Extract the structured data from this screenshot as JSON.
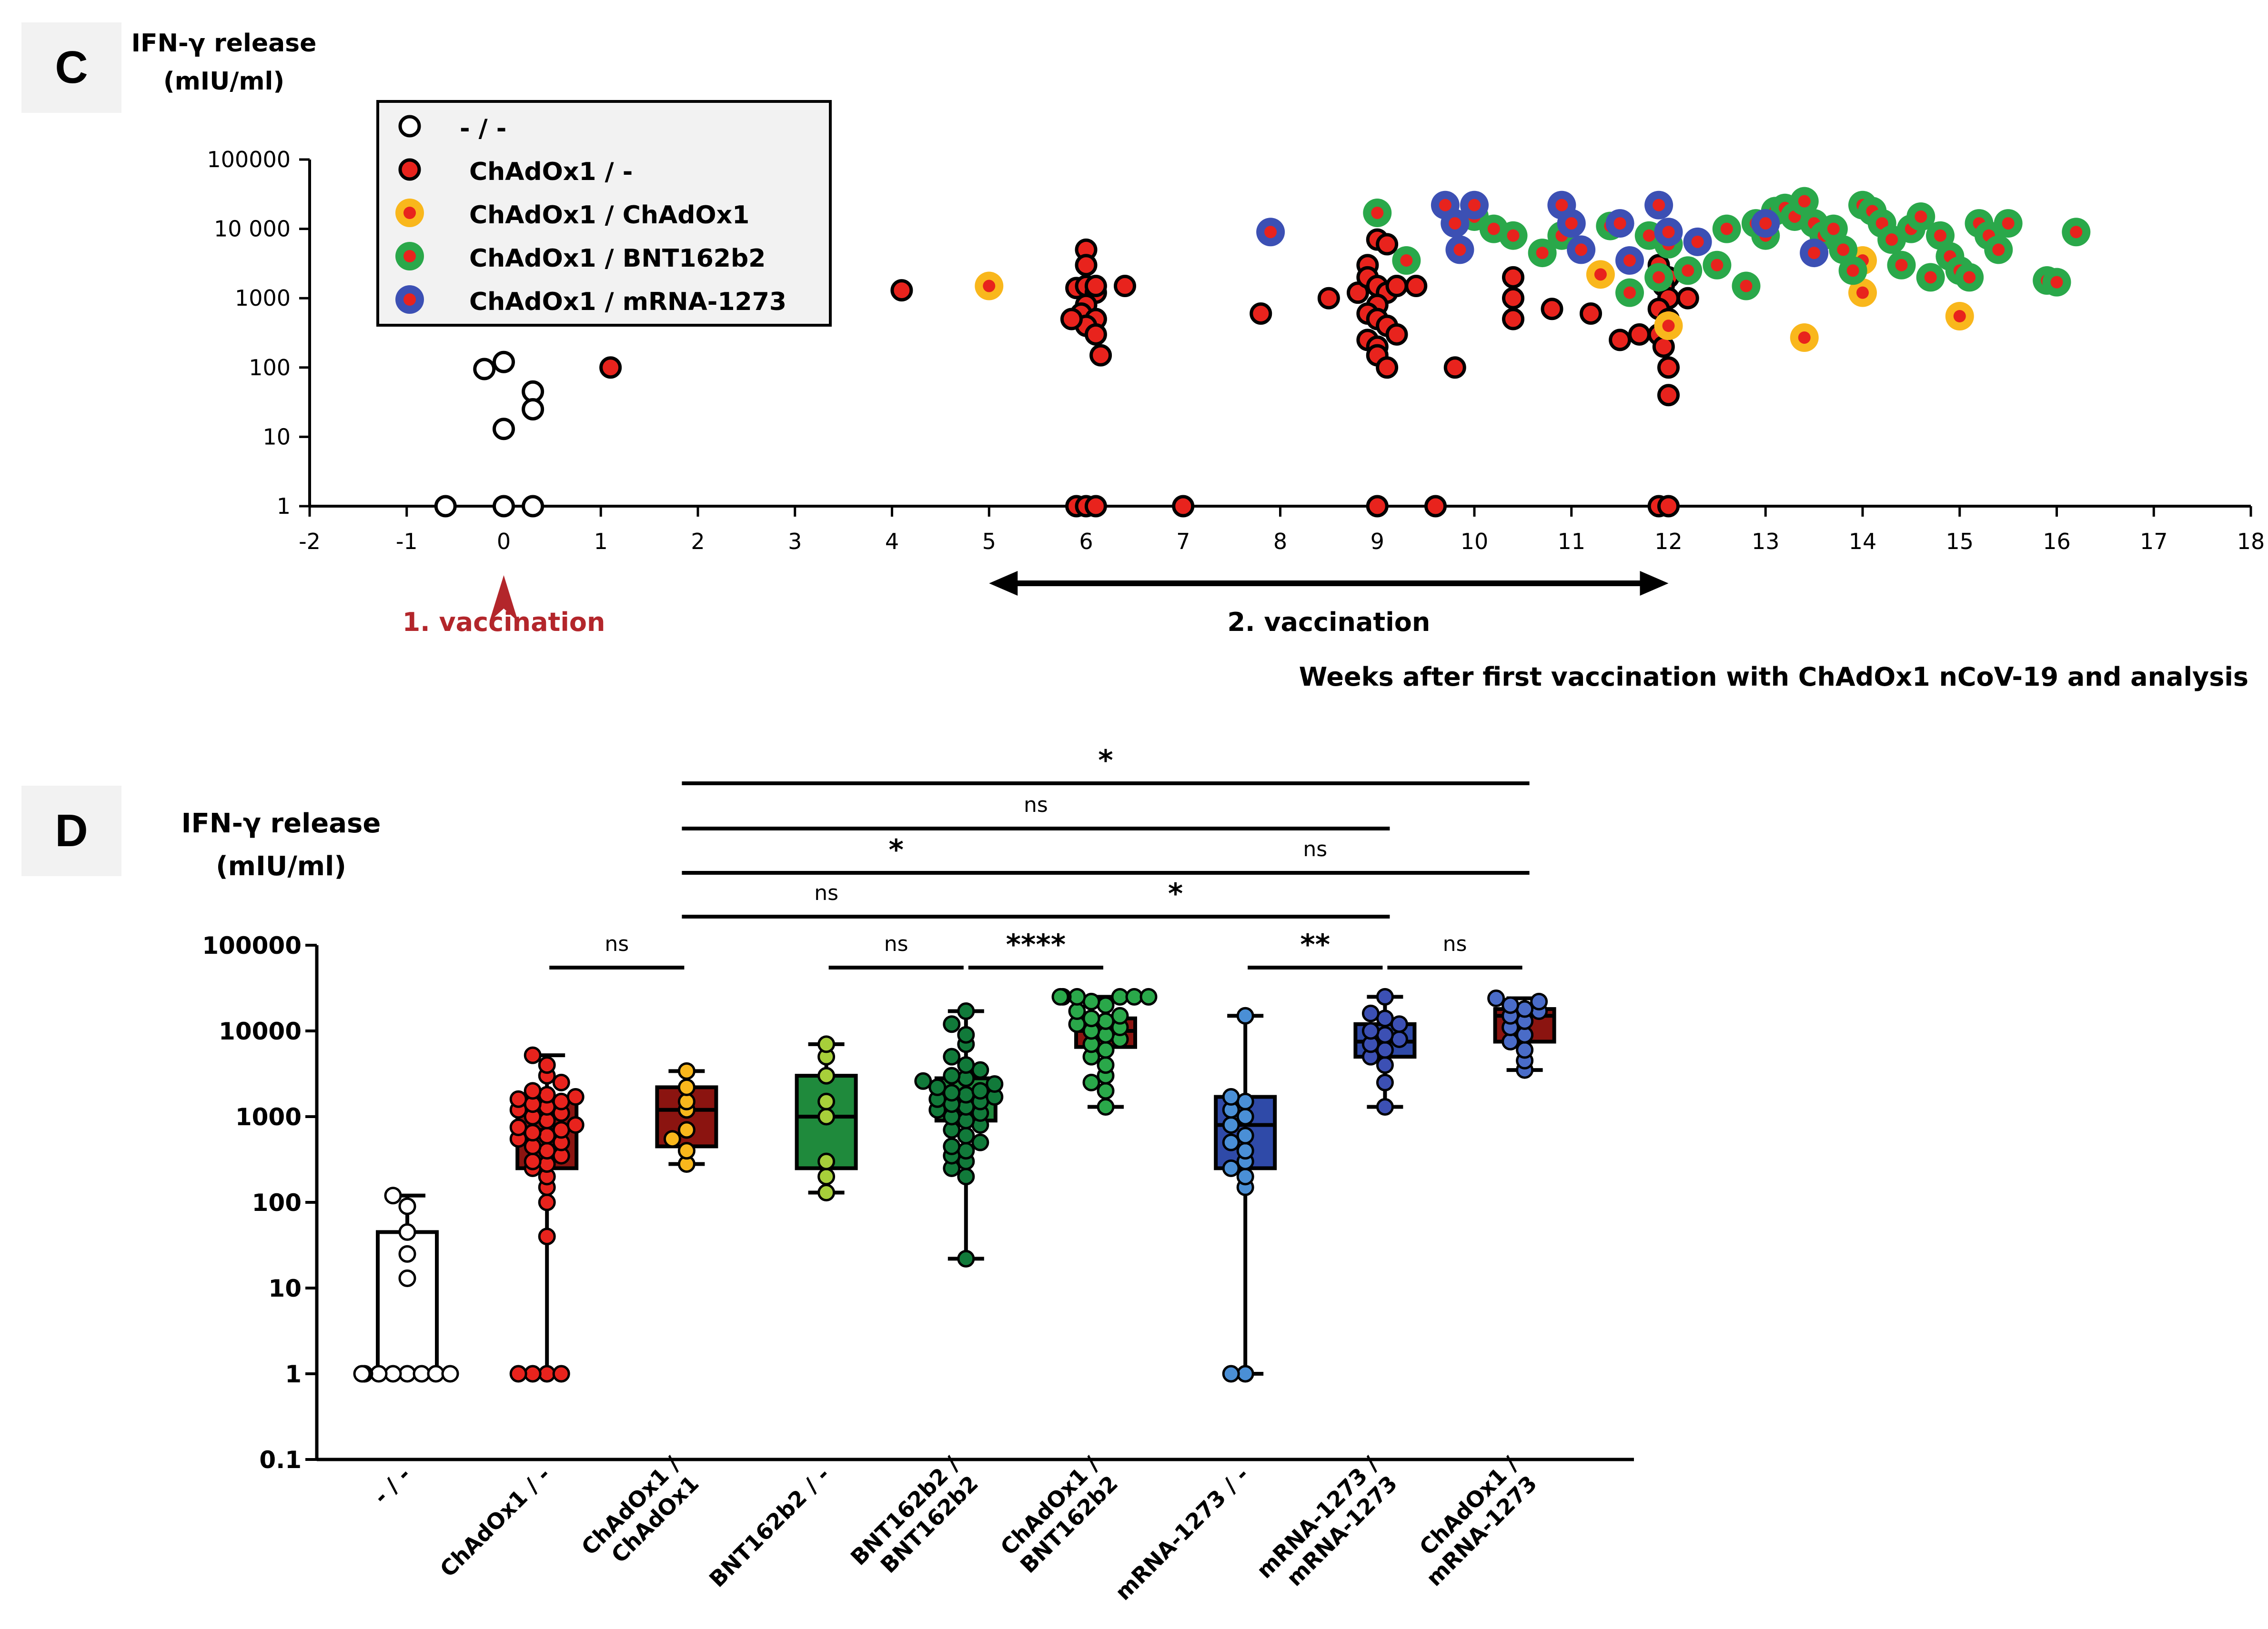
{
  "panels": {
    "c_label": "C",
    "d_label": "D"
  },
  "colors": {
    "white": "#ffffff",
    "red": "#e8231d",
    "orange": "#f9b71c",
    "green": "#2aa84a",
    "blue": "#3c50b4",
    "darkred": "#8b1410",
    "boxgreen": "#1f8a3c",
    "boxblue": "#2f4aa8",
    "lightgreen": "#a7cf3a",
    "darkgreen": "#117a3a",
    "lightblue": "#4a8fd6",
    "arrowred": "#b3262b"
  },
  "chart_data": [
    {
      "type": "scatter",
      "id": "C",
      "ylabel": "IFN-γ release",
      "ylabel_unit": "(mIU/ml)",
      "xlabel": "Weeks after first vaccination with ChAdOx1 nCoV-19 and analysis",
      "y_scale": "log",
      "ylim": [
        1,
        100000
      ],
      "xlim": [
        -2,
        18
      ],
      "x_ticks": [
        "-2",
        "-1",
        "0",
        "1",
        "2",
        "3",
        "4",
        "5",
        "6",
        "7",
        "8",
        "9",
        "10",
        "11",
        "12",
        "13",
        "14",
        "15",
        "16",
        "17",
        "18"
      ],
      "y_ticks": [
        "1",
        "10",
        "100",
        "1000",
        "10 000",
        "100000"
      ],
      "annotations": {
        "first_vaccination": "1. vaccination",
        "second_vaccination": "2. vaccination",
        "second_vaccination_range": [
          5,
          12
        ]
      },
      "legend": [
        {
          "label": "- / -",
          "color": "#ffffff",
          "ring": "#ffffff"
        },
        {
          "label": "ChAdOx1 / -",
          "color": "#e8231d",
          "ring": "#e8231d"
        },
        {
          "label": "ChAdOx1 / ChAdOx1",
          "color": "#e8231d",
          "ring": "#f9b71c"
        },
        {
          "label": "ChAdOx1 / BNT162b2",
          "color": "#e8231d",
          "ring": "#2aa84a"
        },
        {
          "label": "ChAdOx1 / mRNA-1273",
          "color": "#e8231d",
          "ring": "#3c50b4"
        }
      ],
      "series": [
        {
          "name": "- / -",
          "points": [
            [
              -0.6,
              1
            ],
            [
              0,
              1
            ],
            [
              0.3,
              1
            ],
            [
              -0.2,
              95
            ],
            [
              0,
              120
            ],
            [
              0.3,
              45
            ],
            [
              0.3,
              25
            ],
            [
              0,
              13
            ]
          ]
        },
        {
          "name": "ChAdOx1 / -",
          "points": [
            [
              1.1,
              100
            ],
            [
              4.1,
              1300
            ],
            [
              5.9,
              1
            ],
            [
              6,
              1
            ],
            [
              6.1,
              1
            ],
            [
              5.9,
              1400
            ],
            [
              6,
              1500
            ],
            [
              6.1,
              1200
            ],
            [
              6,
              5000
            ],
            [
              6,
              3000
            ],
            [
              6,
              800
            ],
            [
              5.95,
              600
            ],
            [
              6.1,
              500
            ],
            [
              6,
              400
            ],
            [
              6.1,
              300
            ],
            [
              6.15,
              150
            ],
            [
              6.4,
              1500
            ],
            [
              6.1,
              1500
            ],
            [
              5.85,
              500
            ],
            [
              7,
              1
            ],
            [
              7.8,
              600
            ],
            [
              8.5,
              1000
            ],
            [
              8.8,
              1200
            ],
            [
              8.9,
              3000
            ],
            [
              8.9,
              2000
            ],
            [
              9,
              1500
            ],
            [
              9.1,
              1200
            ],
            [
              9,
              800
            ],
            [
              8.9,
              600
            ],
            [
              9,
              500
            ],
            [
              9.1,
              400
            ],
            [
              9.2,
              300
            ],
            [
              8.9,
              250
            ],
            [
              9,
              200
            ],
            [
              9,
              150
            ],
            [
              9.1,
              100
            ],
            [
              9.2,
              1500
            ],
            [
              9,
              7000
            ],
            [
              9.1,
              6000
            ],
            [
              9.4,
              1500
            ],
            [
              9.6,
              1
            ],
            [
              9.8,
              100
            ],
            [
              10.4,
              2000
            ],
            [
              10.4,
              1000
            ],
            [
              10.4,
              500
            ],
            [
              10.8,
              700
            ],
            [
              11.2,
              600
            ],
            [
              11.5,
              250
            ],
            [
              11.7,
              300
            ],
            [
              11.9,
              1
            ],
            [
              12,
              1
            ],
            [
              11.9,
              3000
            ],
            [
              12,
              2000
            ],
            [
              11.95,
              1500
            ],
            [
              12,
              1000
            ],
            [
              11.9,
              700
            ],
            [
              12,
              500
            ],
            [
              11.9,
              300
            ],
            [
              11.95,
              200
            ],
            [
              12,
              100
            ],
            [
              12.2,
              1000
            ],
            [
              12,
              40
            ],
            [
              9,
              1
            ]
          ]
        },
        {
          "name": "ChAdOx1 / ChAdOx1",
          "points": [
            [
              5,
              1500
            ],
            [
              11.3,
              2200
            ],
            [
              12,
              400
            ],
            [
              13.4,
              270
            ],
            [
              14,
              3500
            ],
            [
              14,
              1200
            ],
            [
              15,
              550
            ]
          ]
        },
        {
          "name": "ChAdOx1 / BNT162b2",
          "points": [
            [
              9,
              17000
            ],
            [
              9.3,
              3500
            ],
            [
              10,
              15000
            ],
            [
              10.2,
              10000
            ],
            [
              10.4,
              8000
            ],
            [
              10.9,
              8000
            ],
            [
              10.7,
              4500
            ],
            [
              11.4,
              11000
            ],
            [
              11.6,
              1200
            ],
            [
              11.8,
              8000
            ],
            [
              11.9,
              2000
            ],
            [
              12,
              6000
            ],
            [
              12.2,
              2500
            ],
            [
              12.5,
              3000
            ],
            [
              12.6,
              10000
            ],
            [
              12.8,
              1500
            ],
            [
              12.9,
              12000
            ],
            [
              13,
              8000
            ],
            [
              13.1,
              18000
            ],
            [
              13.2,
              20000
            ],
            [
              13.3,
              15000
            ],
            [
              13.4,
              25000
            ],
            [
              13.5,
              12000
            ],
            [
              13.6,
              8000
            ],
            [
              13.7,
              10000
            ],
            [
              13.8,
              5000
            ],
            [
              13.9,
              2500
            ],
            [
              14,
              22000
            ],
            [
              14.1,
              18000
            ],
            [
              14.2,
              12000
            ],
            [
              14.3,
              7000
            ],
            [
              14.4,
              3000
            ],
            [
              14.5,
              10000
            ],
            [
              14.6,
              15000
            ],
            [
              14.7,
              2000
            ],
            [
              14.8,
              8000
            ],
            [
              14.9,
              4000
            ],
            [
              15,
              2500
            ],
            [
              15.1,
              2000
            ],
            [
              15.2,
              12000
            ],
            [
              15.3,
              8000
            ],
            [
              15.4,
              5000
            ],
            [
              15.5,
              12000
            ],
            [
              15.9,
              1800
            ],
            [
              16,
              1700
            ],
            [
              16.2,
              9000
            ]
          ]
        },
        {
          "name": "ChAdOx1 / mRNA-1273",
          "points": [
            [
              7.9,
              9000
            ],
            [
              9.7,
              22000
            ],
            [
              9.8,
              12000
            ],
            [
              9.85,
              5000
            ],
            [
              10,
              22000
            ],
            [
              10.9,
              22000
            ],
            [
              11,
              12000
            ],
            [
              11.1,
              5000
            ],
            [
              11.5,
              12000
            ],
            [
              11.6,
              3500
            ],
            [
              11.9,
              22000
            ],
            [
              12,
              9000
            ],
            [
              12.3,
              6500
            ],
            [
              13,
              12000
            ],
            [
              13.5,
              4500
            ]
          ]
        }
      ]
    },
    {
      "type": "box",
      "id": "D",
      "ylabel": "IFN-γ release",
      "ylabel_unit": "(mIU/ml)",
      "y_scale": "log",
      "ylim": [
        0.1,
        100000
      ],
      "y_ticks": [
        "0.1",
        "1",
        "10",
        "100",
        "1000",
        "10000",
        "100000"
      ],
      "categories": [
        "- / -",
        "ChAdOx1 / -",
        "ChAdOx1 / ChAdOx1",
        "BNT162b2 / -",
        "BNT162b2 / BNT162b2",
        "ChAdOx1 / BNT162b2",
        "mRNA-1273 / -",
        "mRNA-1273 / mRNA-1273",
        "ChAdOx1 / mRNA-1273"
      ],
      "category_lines": [
        [
          "- / -"
        ],
        [
          "ChAdOx1 / -"
        ],
        [
          "ChAdOx1 /",
          "ChAdOx1"
        ],
        [
          "BNT162b2 / -"
        ],
        [
          "BNT162b2 /",
          "BNT162b2"
        ],
        [
          "ChAdOx1 /",
          "BNT162b2"
        ],
        [
          "mRNA-1273 / -"
        ],
        [
          "mRNA-1273 /",
          "mRNA-1273"
        ],
        [
          "ChAdOx1 /",
          "mRNA-1273"
        ]
      ],
      "boxes": [
        {
          "min": 1,
          "q1": 1,
          "median": 1,
          "q3": 45,
          "max": 120,
          "fill": "#ffffff",
          "dot": "#ffffff",
          "points": [
            1,
            1,
            1,
            1,
            1,
            1,
            1,
            1,
            13,
            25,
            45,
            90,
            120
          ]
        },
        {
          "min": 1,
          "q1": 250,
          "median": 700,
          "q3": 1600,
          "max": 5200,
          "fill": "#8b1410",
          "dot": "#e8231d",
          "points": [
            1,
            1,
            1,
            1,
            40,
            100,
            150,
            200,
            250,
            280,
            300,
            350,
            400,
            450,
            500,
            550,
            600,
            650,
            700,
            750,
            800,
            900,
            1000,
            1100,
            1200,
            1300,
            1400,
            1500,
            1600,
            1700,
            1800,
            2000,
            2500,
            3000,
            4000,
            5200
          ]
        },
        {
          "min": 280,
          "q1": 450,
          "median": 1200,
          "q3": 2200,
          "max": 3400,
          "fill": "#8b1410",
          "dot": "#f9b71c",
          "points": [
            280,
            400,
            550,
            1200,
            1500,
            2200,
            3400,
            700
          ]
        },
        {
          "min": 130,
          "q1": 250,
          "median": 1000,
          "q3": 3000,
          "max": 7000,
          "fill": "#1f8a3c",
          "dot": "#a7cf3a",
          "points": [
            130,
            200,
            300,
            1000,
            1500,
            3000,
            5000,
            7000
          ]
        },
        {
          "min": 22,
          "q1": 900,
          "median": 1800,
          "q3": 2800,
          "max": 17000,
          "fill": "#1f8a3c",
          "dot": "#117a3a",
          "points": [
            22,
            200,
            250,
            300,
            350,
            400,
            450,
            500,
            600,
            700,
            800,
            900,
            1000,
            1100,
            1200,
            1300,
            1400,
            1500,
            1600,
            1700,
            1800,
            1900,
            2000,
            2200,
            2400,
            2600,
            2800,
            3000,
            3500,
            4000,
            5000,
            7000,
            9000,
            12000,
            17000
          ]
        },
        {
          "min": 1300,
          "q1": 6500,
          "median": 10000,
          "q3": 14000,
          "max": 25000,
          "fill": "#8b1410",
          "dot": "#2aa84a",
          "points": [
            1300,
            2000,
            2500,
            3000,
            4000,
            5000,
            6000,
            7000,
            8000,
            9000,
            10000,
            11000,
            12000,
            13000,
            14000,
            15000,
            17000,
            20000,
            22000,
            25000,
            25000,
            25000,
            25000,
            25000,
            25000
          ]
        },
        {
          "min": 1,
          "q1": 250,
          "median": 800,
          "q3": 1700,
          "max": 15000,
          "fill": "#2f4aa8",
          "dot": "#4a8fd6",
          "points": [
            1,
            1,
            150,
            200,
            250,
            300,
            400,
            500,
            600,
            800,
            1000,
            1200,
            1500,
            1700,
            15000
          ]
        },
        {
          "min": 1300,
          "q1": 5000,
          "median": 7500,
          "q3": 12000,
          "max": 25000,
          "fill": "#2f4aa8",
          "dot": "#3c50b4",
          "points": [
            1300,
            2500,
            4000,
            5000,
            6000,
            7000,
            8000,
            9000,
            10000,
            12000,
            14000,
            16000,
            25000
          ]
        },
        {
          "min": 3500,
          "q1": 7500,
          "median": 15000,
          "q3": 18000,
          "max": 24000,
          "fill": "#8b1410",
          "dot": "#4a6cc8",
          "points": [
            3500,
            4500,
            6000,
            7500,
            9000,
            11000,
            13000,
            15000,
            17000,
            18000,
            20000,
            22000,
            24000
          ]
        }
      ],
      "significance": [
        {
          "from": 1,
          "to": 2,
          "label": "ns",
          "level": 0
        },
        {
          "from": 3,
          "to": 4,
          "label": "ns",
          "level": 0
        },
        {
          "from": 4,
          "to": 5,
          "label": "****",
          "level": 0
        },
        {
          "from": 6,
          "to": 7,
          "label": "**",
          "level": 0
        },
        {
          "from": 7,
          "to": 8,
          "label": "ns",
          "level": 0
        },
        {
          "from": 2,
          "to": 4,
          "label": "ns",
          "level": 1
        },
        {
          "from": 4,
          "to": 7,
          "label": "*",
          "level": 1
        },
        {
          "from": 2,
          "to": 5,
          "label": "*",
          "level": 2
        },
        {
          "from": 5,
          "to": 8,
          "label": "ns",
          "level": 2
        },
        {
          "from": 2,
          "to": 7,
          "label": "ns",
          "level": 3
        },
        {
          "from": 2,
          "to": 8,
          "label": "*",
          "level": 4
        }
      ]
    }
  ]
}
